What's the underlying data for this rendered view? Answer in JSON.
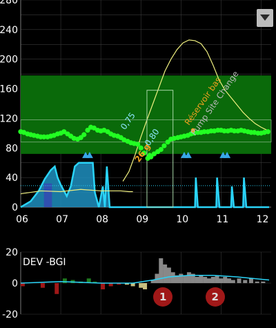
{
  "main_chart": {
    "y_ticks": [
      "0",
      "20",
      "40",
      "60",
      "80",
      "100",
      "120",
      "140",
      "160",
      "180",
      "200",
      "220",
      "240",
      "260",
      "280"
    ],
    "y_tick_labels_shown": [
      "0",
      "40",
      "80",
      "120",
      "160",
      "200",
      "240",
      "280"
    ],
    "x_ticks": [
      "06",
      "07",
      "08",
      "09",
      "10",
      "11",
      "12"
    ],
    "target_range": [
      72,
      178
    ],
    "inner_range": [
      88,
      118
    ],
    "insulin_max_label": "60",
    "colors": {
      "target_band": "#0a6a0a",
      "glucose_dots": "#22ff22",
      "prediction_line": "#f0f080",
      "basal": "#2ad4f8",
      "bolus_triangle": "#38a8e8",
      "carbs": "#f0a020",
      "note": "#b8b8b8"
    },
    "glucose_series": [
      {
        "t": 6.0,
        "bg": 102
      },
      {
        "t": 6.08,
        "bg": 101
      },
      {
        "t": 6.17,
        "bg": 99
      },
      {
        "t": 6.25,
        "bg": 98
      },
      {
        "t": 6.33,
        "bg": 97
      },
      {
        "t": 6.42,
        "bg": 96
      },
      {
        "t": 6.5,
        "bg": 95
      },
      {
        "t": 6.58,
        "bg": 95
      },
      {
        "t": 6.67,
        "bg": 95
      },
      {
        "t": 6.75,
        "bg": 96
      },
      {
        "t": 6.83,
        "bg": 97
      },
      {
        "t": 6.92,
        "bg": 99
      },
      {
        "t": 7.0,
        "bg": 100
      },
      {
        "t": 7.08,
        "bg": 102
      },
      {
        "t": 7.17,
        "bg": 99
      },
      {
        "t": 7.25,
        "bg": 96
      },
      {
        "t": 7.33,
        "bg": 93
      },
      {
        "t": 7.42,
        "bg": 92
      },
      {
        "t": 7.5,
        "bg": 94
      },
      {
        "t": 7.58,
        "bg": 98
      },
      {
        "t": 7.67,
        "bg": 104
      },
      {
        "t": 7.75,
        "bg": 108
      },
      {
        "t": 7.83,
        "bg": 107
      },
      {
        "t": 7.92,
        "bg": 104
      },
      {
        "t": 8.0,
        "bg": 103
      },
      {
        "t": 8.08,
        "bg": 104
      },
      {
        "t": 8.17,
        "bg": 102
      },
      {
        "t": 8.25,
        "bg": 99
      },
      {
        "t": 8.33,
        "bg": 97
      },
      {
        "t": 8.42,
        "bg": 96
      },
      {
        "t": 8.5,
        "bg": 94
      },
      {
        "t": 8.58,
        "bg": 91
      },
      {
        "t": 8.67,
        "bg": 89
      },
      {
        "t": 8.75,
        "bg": 87
      },
      {
        "t": 8.83,
        "bg": 86
      },
      {
        "t": 8.92,
        "bg": 85
      },
      {
        "t": 9.0,
        "bg": 80
      },
      {
        "t": 9.08,
        "bg": 73
      },
      {
        "t": 9.17,
        "bg": 66
      },
      {
        "t": 9.25,
        "bg": 68
      },
      {
        "t": 9.33,
        "bg": 72
      },
      {
        "t": 9.42,
        "bg": 75
      },
      {
        "t": 9.5,
        "bg": 78
      },
      {
        "t": 9.58,
        "bg": 83
      },
      {
        "t": 9.67,
        "bg": 88
      },
      {
        "t": 9.75,
        "bg": 92
      },
      {
        "t": 9.83,
        "bg": 93
      },
      {
        "t": 9.92,
        "bg": 94
      },
      {
        "t": 10.0,
        "bg": 95
      },
      {
        "t": 10.08,
        "bg": 96
      },
      {
        "t": 10.17,
        "bg": 97
      },
      {
        "t": 10.25,
        "bg": 99
      },
      {
        "t": 10.33,
        "bg": 100
      },
      {
        "t": 10.42,
        "bg": 101
      },
      {
        "t": 10.5,
        "bg": 101
      },
      {
        "t": 10.58,
        "bg": 102
      },
      {
        "t": 10.67,
        "bg": 102
      },
      {
        "t": 10.75,
        "bg": 103
      },
      {
        "t": 10.83,
        "bg": 103
      },
      {
        "t": 10.92,
        "bg": 104
      },
      {
        "t": 11.0,
        "bg": 104
      },
      {
        "t": 11.08,
        "bg": 103
      },
      {
        "t": 11.17,
        "bg": 103
      },
      {
        "t": 11.25,
        "bg": 104
      },
      {
        "t": 11.33,
        "bg": 103
      },
      {
        "t": 11.42,
        "bg": 103
      },
      {
        "t": 11.5,
        "bg": 104
      },
      {
        "t": 11.58,
        "bg": 103
      },
      {
        "t": 11.67,
        "bg": 102
      },
      {
        "t": 11.75,
        "bg": 101
      },
      {
        "t": 11.83,
        "bg": 101
      },
      {
        "t": 11.92,
        "bg": 100
      },
      {
        "t": 12.0,
        "bg": 100
      },
      {
        "t": 12.08,
        "bg": 101
      },
      {
        "t": 12.17,
        "bg": 102
      }
    ],
    "prediction_series": [
      {
        "t": 8.55,
        "bg": 35
      },
      {
        "t": 8.7,
        "bg": 48
      },
      {
        "t": 8.85,
        "bg": 70
      },
      {
        "t": 9.0,
        "bg": 95
      },
      {
        "t": 9.15,
        "bg": 118
      },
      {
        "t": 9.3,
        "bg": 140
      },
      {
        "t": 9.45,
        "bg": 162
      },
      {
        "t": 9.6,
        "bg": 184
      },
      {
        "t": 9.75,
        "bg": 200
      },
      {
        "t": 9.9,
        "bg": 213
      },
      {
        "t": 10.05,
        "bg": 222
      },
      {
        "t": 10.2,
        "bg": 226
      },
      {
        "t": 10.35,
        "bg": 225
      },
      {
        "t": 10.5,
        "bg": 221
      },
      {
        "t": 10.65,
        "bg": 210
      },
      {
        "t": 10.8,
        "bg": 192
      },
      {
        "t": 10.95,
        "bg": 172
      },
      {
        "t": 11.1,
        "bg": 158
      },
      {
        "t": 11.25,
        "bg": 148
      },
      {
        "t": 11.4,
        "bg": 138
      },
      {
        "t": 11.55,
        "bg": 128
      },
      {
        "t": 11.7,
        "bg": 120
      },
      {
        "t": 11.85,
        "bg": 113
      },
      {
        "t": 12.0,
        "bg": 108
      },
      {
        "t": 12.15,
        "bg": 104
      }
    ],
    "iob_series": [
      {
        "t": 6.0,
        "v": 18
      },
      {
        "t": 6.5,
        "v": 22
      },
      {
        "t": 7.0,
        "v": 21
      },
      {
        "t": 7.5,
        "v": 24
      },
      {
        "t": 8.0,
        "v": 22
      },
      {
        "t": 8.5,
        "v": 22
      },
      {
        "t": 8.7,
        "v": 21
      },
      {
        "t": 8.8,
        "v": 21
      }
    ],
    "basal_rate": [
      {
        "t": 6.0,
        "v": 0
      },
      {
        "t": 6.25,
        "v": 8
      },
      {
        "t": 6.45,
        "v": 22
      },
      {
        "t": 6.6,
        "v": 38
      },
      {
        "t": 6.75,
        "v": 50
      },
      {
        "t": 6.85,
        "v": 55
      },
      {
        "t": 6.92,
        "v": 40
      },
      {
        "t": 7.0,
        "v": 30
      },
      {
        "t": 7.15,
        "v": 15
      },
      {
        "t": 7.25,
        "v": 28
      },
      {
        "t": 7.35,
        "v": 55
      },
      {
        "t": 7.45,
        "v": 60
      },
      {
        "t": 7.8,
        "v": 60
      },
      {
        "t": 7.85,
        "v": 20
      },
      {
        "t": 7.95,
        "v": 0
      },
      {
        "t": 8.05,
        "v": 28
      },
      {
        "t": 8.1,
        "v": 0
      },
      {
        "t": 8.15,
        "v": 55
      },
      {
        "t": 8.22,
        "v": 0
      },
      {
        "t": 8.35,
        "v": 0
      },
      {
        "t": 8.55,
        "v": 0
      },
      {
        "t": 10.35,
        "v": 0
      },
      {
        "t": 10.37,
        "v": 40
      },
      {
        "t": 10.42,
        "v": 0
      },
      {
        "t": 10.88,
        "v": 0
      },
      {
        "t": 10.9,
        "v": 40
      },
      {
        "t": 10.96,
        "v": 0
      },
      {
        "t": 11.25,
        "v": 0
      },
      {
        "t": 11.27,
        "v": 28
      },
      {
        "t": 11.32,
        "v": 0
      },
      {
        "t": 11.55,
        "v": 0
      },
      {
        "t": 11.57,
        "v": 40
      },
      {
        "t": 11.63,
        "v": 0
      },
      {
        "t": 12.2,
        "v": 0
      }
    ],
    "insulin_boluses_t": [
      7.62,
      7.72,
      10.08,
      10.18,
      11.05,
      11.15
    ],
    "smb_labels": [
      {
        "t": 8.6,
        "bg": 104,
        "text": "0,75"
      },
      {
        "t": 9.2,
        "bg": 82,
        "text": "0,80"
      }
    ],
    "carbs_label": {
      "t": 8.95,
      "bg": 60,
      "text": "26 g"
    },
    "carbs_dot": {
      "t": 9.22,
      "bg": 70
    },
    "notes": [
      {
        "t": 10.2,
        "bg": 110,
        "text": "Réservoir bas",
        "color": "#f0a020"
      },
      {
        "t": 10.35,
        "bg": 96,
        "text": "Pump Site Change",
        "color": "#b8b8b8"
      }
    ],
    "activity_box": {
      "t1": 9.15,
      "t2": 9.8,
      "bg_top": 158
    },
    "current_dot": {
      "t": 10.3,
      "bg": 104
    }
  },
  "dev_chart": {
    "label": "DEV -BGI",
    "y_ticks": [
      "-20",
      "0",
      "20"
    ],
    "bars": [
      {
        "t": 6.05,
        "v": -2,
        "c": "#a01818"
      },
      {
        "t": 6.55,
        "v": -3,
        "c": "#a01818"
      },
      {
        "t": 6.9,
        "v": -7,
        "c": "#a01818"
      },
      {
        "t": 7.1,
        "v": 3,
        "c": "#1e7a1e"
      },
      {
        "t": 7.3,
        "v": 2,
        "c": "#1e7a1e"
      },
      {
        "t": 7.5,
        "v": 1,
        "c": "#1e7a1e"
      },
      {
        "t": 7.7,
        "v": 3,
        "c": "#1e7a1e"
      },
      {
        "t": 7.85,
        "v": 1,
        "c": "#1e7a1e"
      },
      {
        "t": 8.05,
        "v": -4,
        "c": "#a01818"
      },
      {
        "t": 8.25,
        "v": -2,
        "c": "#a01818"
      },
      {
        "t": 8.45,
        "v": -1,
        "c": "#a01818"
      },
      {
        "t": 8.65,
        "v": -1,
        "c": "#c8c080"
      },
      {
        "t": 8.8,
        "v": -2,
        "c": "#c8c080"
      },
      {
        "t": 9.0,
        "v": -3,
        "c": "#c8c080"
      },
      {
        "t": 9.1,
        "v": -4,
        "c": "#c8c080"
      },
      {
        "t": 9.3,
        "v": 2,
        "c": "#888888"
      },
      {
        "t": 9.4,
        "v": 6,
        "c": "#888888"
      },
      {
        "t": 9.5,
        "v": 16,
        "c": "#888888"
      },
      {
        "t": 9.6,
        "v": 12,
        "c": "#888888"
      },
      {
        "t": 9.7,
        "v": 10,
        "c": "#888888"
      },
      {
        "t": 9.8,
        "v": 7,
        "c": "#888888"
      },
      {
        "t": 9.9,
        "v": 5,
        "c": "#888888"
      },
      {
        "t": 10.0,
        "v": 6,
        "c": "#888888"
      },
      {
        "t": 10.1,
        "v": 5,
        "c": "#888888"
      },
      {
        "t": 10.2,
        "v": 7,
        "c": "#888888"
      },
      {
        "t": 10.3,
        "v": 6,
        "c": "#888888"
      },
      {
        "t": 10.4,
        "v": 4,
        "c": "#888888"
      },
      {
        "t": 10.5,
        "v": 5,
        "c": "#888888"
      },
      {
        "t": 10.6,
        "v": 4,
        "c": "#888888"
      },
      {
        "t": 10.7,
        "v": 3,
        "c": "#888888"
      },
      {
        "t": 10.8,
        "v": 4,
        "c": "#888888"
      },
      {
        "t": 10.9,
        "v": 5,
        "c": "#888888"
      },
      {
        "t": 11.0,
        "v": 3,
        "c": "#888888"
      },
      {
        "t": 11.1,
        "v": 4,
        "c": "#888888"
      },
      {
        "t": 11.2,
        "v": 3,
        "c": "#888888"
      },
      {
        "t": 11.3,
        "v": 2,
        "c": "#888888"
      },
      {
        "t": 11.45,
        "v": 3,
        "c": "#888888"
      },
      {
        "t": 11.6,
        "v": 2,
        "c": "#888888"
      },
      {
        "t": 11.75,
        "v": 3,
        "c": "#888888"
      },
      {
        "t": 11.9,
        "v": 1,
        "c": "#888888"
      },
      {
        "t": 12.05,
        "v": 1,
        "c": "#888888"
      }
    ],
    "trend": [
      {
        "t": 6.0,
        "v": 0
      },
      {
        "t": 7.0,
        "v": 1
      },
      {
        "t": 8.0,
        "v": 0
      },
      {
        "t": 8.8,
        "v": 0
      },
      {
        "t": 9.3,
        "v": 2
      },
      {
        "t": 9.7,
        "v": 4
      },
      {
        "t": 10.2,
        "v": 5
      },
      {
        "t": 10.8,
        "v": 5
      },
      {
        "t": 11.4,
        "v": 4
      },
      {
        "t": 12.2,
        "v": 2
      }
    ],
    "markers": [
      {
        "t": 9.55,
        "label": "1"
      },
      {
        "t": 10.85,
        "label": "2"
      }
    ]
  }
}
